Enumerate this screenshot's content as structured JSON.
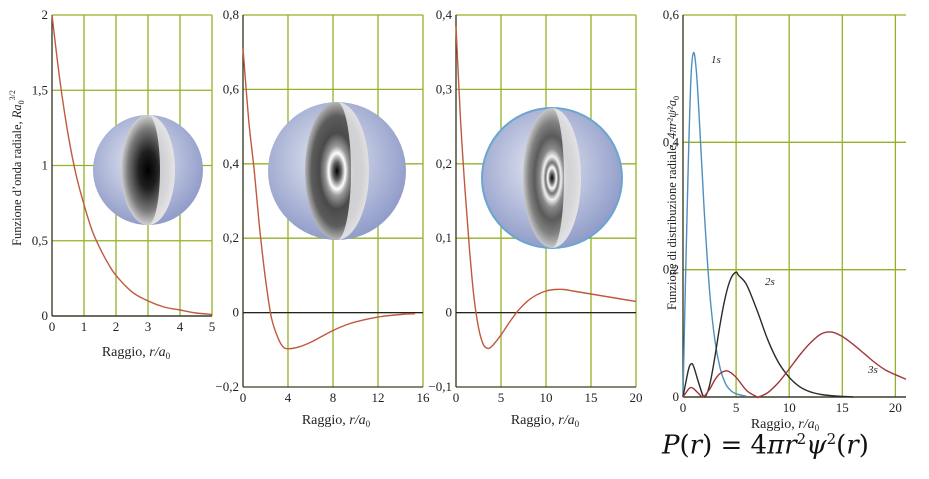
{
  "chart_data": [
    {
      "type": "line",
      "xlabel_main": "Raggio, ",
      "xlabel_var": "r",
      "xlabel_unit": "/a",
      "xlabel_sub": "0",
      "ylabel_main": "Funzione d’onda radiale, ",
      "ylabel_var": "Ra",
      "ylabel_sub": "0",
      "ylabel_sup": "3/2",
      "xlim": [
        0,
        5
      ],
      "ylim": [
        0,
        2
      ],
      "grid": true,
      "xticks": [
        0,
        1,
        2,
        3,
        4,
        5
      ],
      "xtick_labels": [
        "0",
        "1",
        "2",
        "3",
        "4",
        "5"
      ],
      "yticks": [
        0,
        0.5,
        1,
        1.5,
        2
      ],
      "ytick_labels": [
        "0",
        "0,5",
        "1",
        "1,5",
        "2"
      ],
      "series": [
        {
          "color": "#c0593e",
          "x": [
            0,
            0.25,
            0.5,
            0.75,
            1,
            1.25,
            1.5,
            1.75,
            2,
            2.5,
            3,
            3.5,
            4,
            4.5,
            5
          ],
          "y": [
            2.0,
            1.56,
            1.21,
            0.94,
            0.74,
            0.57,
            0.45,
            0.35,
            0.27,
            0.16,
            0.1,
            0.06,
            0.04,
            0.02,
            0.01
          ]
        }
      ],
      "orbital_image": "1s-orbital-sphere"
    },
    {
      "type": "line",
      "xlabel_main": "Raggio, ",
      "xlabel_var": "r",
      "xlabel_unit": "/a",
      "xlabel_sub": "0",
      "xlim": [
        0,
        16
      ],
      "ylim": [
        -0.2,
        0.8
      ],
      "grid": true,
      "xticks": [
        0,
        4,
        8,
        12,
        16
      ],
      "xtick_labels": [
        "0",
        "4",
        "8",
        "12",
        "16"
      ],
      "yticks": [
        -0.2,
        0,
        0.2,
        0.4,
        0.6,
        0.8
      ],
      "ytick_labels": [
        "−0,2",
        "0",
        "0,2",
        "0,4",
        "0,6",
        "0,8"
      ],
      "series": [
        {
          "color": "#c0593e",
          "x": [
            0,
            0.5,
            1,
            1.5,
            2,
            2.5,
            3,
            3.5,
            4,
            5,
            6,
            7,
            8,
            9,
            10,
            12,
            14,
            15.3
          ],
          "y": [
            0.71,
            0.52,
            0.38,
            0.22,
            0.09,
            -0.01,
            -0.06,
            -0.09,
            -0.097,
            -0.092,
            -0.08,
            -0.064,
            -0.048,
            -0.035,
            -0.025,
            -0.012,
            -0.005,
            -0.003
          ]
        }
      ],
      "orbital_image": "2s-orbital-sphere"
    },
    {
      "type": "line",
      "xlabel_main": "Raggio, ",
      "xlabel_var": "r",
      "xlabel_unit": "/a",
      "xlabel_sub": "0",
      "xlim": [
        0,
        20
      ],
      "ylim": [
        -0.1,
        0.4
      ],
      "grid": true,
      "xticks": [
        0,
        5,
        10,
        15,
        20
      ],
      "xtick_labels": [
        "0",
        "5",
        "10",
        "15",
        "20"
      ],
      "yticks": [
        -0.1,
        0,
        0.1,
        0.2,
        0.3,
        0.4
      ],
      "ytick_labels": [
        "−0,1",
        "0",
        "0,1",
        "0,2",
        "0,3",
        "0,4"
      ],
      "series": [
        {
          "color": "#c0593e",
          "x": [
            0,
            0.5,
            1,
            1.5,
            2,
            2.5,
            3,
            3.5,
            4,
            5,
            6,
            7,
            8,
            9,
            10,
            11,
            12,
            13,
            14,
            15,
            16,
            17,
            18,
            19,
            20
          ],
          "y": [
            0.385,
            0.26,
            0.165,
            0.085,
            0.02,
            -0.02,
            -0.042,
            -0.048,
            -0.045,
            -0.03,
            -0.012,
            0.004,
            0.016,
            0.024,
            0.029,
            0.031,
            0.031,
            0.029,
            0.027,
            0.025,
            0.023,
            0.021,
            0.019,
            0.017,
            0.015
          ]
        }
      ],
      "orbital_image": "3s-orbital-sphere"
    },
    {
      "type": "line",
      "xlabel_main": "Raggio, ",
      "xlabel_var": "r",
      "xlabel_unit": "/a",
      "xlabel_sub": "0",
      "ylabel_main": "Funzione di distribuzione radiale, ",
      "ylabel_var": "4πr²ψ²a",
      "ylabel_sub": "0",
      "xlim": [
        0,
        21
      ],
      "ylim": [
        0,
        0.6
      ],
      "grid": true,
      "xticks": [
        0,
        5,
        10,
        15,
        20
      ],
      "xtick_labels": [
        "0",
        "5",
        "10",
        "15",
        "20"
      ],
      "yticks": [
        0,
        0.2,
        0.4,
        0.6
      ],
      "ytick_labels": [
        "0",
        "0,2",
        "0,4",
        "0,6"
      ],
      "series": [
        {
          "name": "1s",
          "color": "#4f8fc0",
          "x": [
            0,
            0.25,
            0.5,
            0.75,
            1,
            1.25,
            1.5,
            2,
            2.5,
            3,
            3.5,
            4,
            4.5,
            5,
            6
          ],
          "y": [
            0,
            0.197,
            0.368,
            0.502,
            0.541,
            0.513,
            0.448,
            0.293,
            0.168,
            0.089,
            0.045,
            0.021,
            0.01,
            0.005,
            0.001
          ]
        },
        {
          "name": "2s",
          "color": "#2a2a2a",
          "x": [
            0,
            0.5,
            0.76,
            1,
            1.5,
            2,
            2.5,
            3,
            3.5,
            4,
            4.5,
            5,
            5.24,
            6,
            7,
            8,
            9,
            10,
            11,
            12,
            13,
            14,
            15,
            16
          ],
          "y": [
            0,
            0.042,
            0.052,
            0.048,
            0.021,
            0,
            0.018,
            0.063,
            0.115,
            0.158,
            0.186,
            0.196,
            0.191,
            0.176,
            0.135,
            0.089,
            0.054,
            0.031,
            0.016,
            0.008,
            0.004,
            0.002,
            0.001,
            0
          ]
        },
        {
          "name": "3s",
          "color": "#a0363b",
          "x": [
            0,
            0.5,
            0.74,
            1,
            1.5,
            1.9,
            2.5,
            3,
            3.5,
            4.19,
            5,
            6,
            7,
            7.1,
            8,
            9,
            10,
            11,
            12,
            13,
            14,
            15,
            16,
            17,
            18,
            19,
            20,
            21
          ],
          "y": [
            0,
            0.012,
            0.015,
            0.013,
            0.005,
            0,
            0.012,
            0.027,
            0.037,
            0.041,
            0.031,
            0.01,
            0.0,
            0.0,
            0.007,
            0.023,
            0.044,
            0.066,
            0.085,
            0.099,
            0.102,
            0.095,
            0.083,
            0.069,
            0.055,
            0.043,
            0.035,
            0.028
          ]
        }
      ]
    }
  ],
  "formula": {
    "P": "P",
    "open": "(",
    "r1": "r",
    "eq": ") = 4",
    "pi": "π",
    "r2": "r",
    "sq1": "2",
    "psi": "ψ",
    "sq2": "2",
    "open2": "(",
    "r3": "r",
    "close": ")"
  },
  "colors": {
    "grid": "#93b228",
    "axis": "#222222"
  }
}
